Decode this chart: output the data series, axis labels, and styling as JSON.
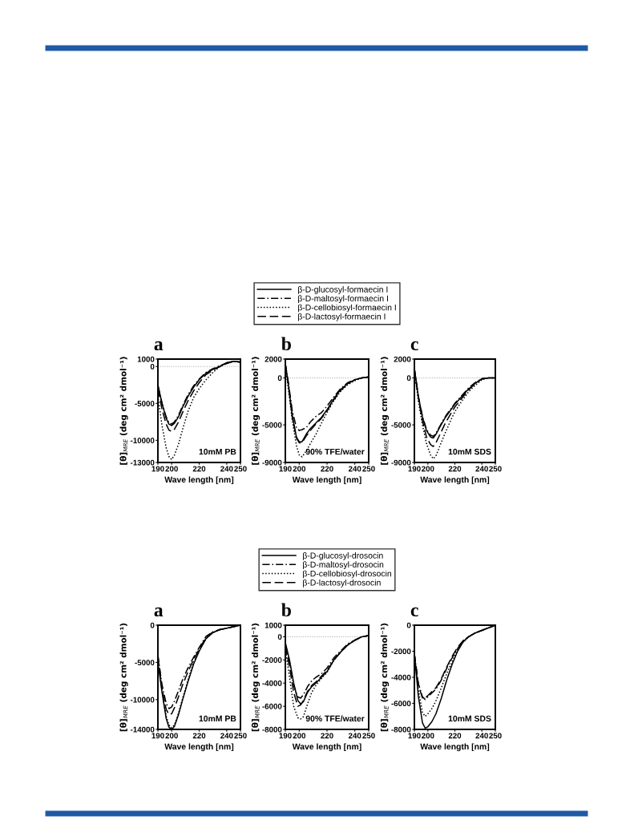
{
  "chart_data": [
    {
      "type": "line",
      "title": "a",
      "xlabel": "Wave length [nm]",
      "ylabel": "[θ]$_{MRE}$ (deg cm² dmol⁻¹)",
      "xlim": [
        190,
        250
      ],
      "xticks": [
        190,
        200,
        220,
        240,
        250
      ],
      "ylim": [
        -13000,
        1000
      ],
      "yticks": [
        1000,
        0,
        -5000,
        -10000,
        -13000
      ],
      "legend": "top",
      "grid": false,
      "annotations": [
        "10mM PB"
      ],
      "ref_lines": [
        {
          "axis": "y",
          "value": 0,
          "color": "#aaaaaa",
          "line_style": "dotted"
        }
      ],
      "x": [
        190,
        193,
        196,
        198,
        200,
        202,
        205,
        208,
        212,
        216,
        220,
        225,
        230,
        235,
        240,
        245,
        250
      ],
      "series": [
        {
          "name": "β-D-glucosyl-formaecin I",
          "color": "#000000",
          "line_style": "solid",
          "values": [
            -2500,
            -5000,
            -7000,
            -7800,
            -8000,
            -7700,
            -6800,
            -5500,
            -4000,
            -2800,
            -1800,
            -900,
            -400,
            0,
            500,
            700,
            600
          ]
        },
        {
          "name": "β-D-maltosyl-formaecin I",
          "color": "#000000",
          "line_style": "dashdot",
          "values": [
            -2600,
            -5000,
            -6800,
            -7600,
            -7800,
            -7500,
            -6600,
            -5300,
            -3800,
            -2600,
            -1700,
            -800,
            -300,
            100,
            500,
            700,
            600
          ]
        },
        {
          "name": "β-D-cellobiosyl-formaecin I",
          "color": "#000000",
          "line_style": "dotted",
          "values": [
            -4000,
            -8000,
            -11000,
            -12200,
            -12600,
            -12000,
            -10500,
            -8500,
            -6000,
            -4200,
            -3000,
            -1800,
            -800,
            0,
            400,
            700,
            600
          ]
        },
        {
          "name": "β-D-lactosyl-formaecin I",
          "color": "#000000",
          "line_style": "dashed",
          "values": [
            -3000,
            -5800,
            -7800,
            -8600,
            -8800,
            -8500,
            -7500,
            -6200,
            -4600,
            -3300,
            -2200,
            -1100,
            -500,
            0,
            400,
            700,
            600
          ]
        }
      ]
    },
    {
      "type": "line",
      "title": "b",
      "xlabel": "Wave length [nm]",
      "ylabel": "[θ]$_{MRE}$ (deg cm² dmol⁻¹)",
      "xlim": [
        190,
        250
      ],
      "xticks": [
        190,
        200,
        220,
        240,
        250
      ],
      "ylim": [
        -9000,
        2000
      ],
      "yticks": [
        2000,
        0,
        -5000,
        -9000
      ],
      "grid": false,
      "annotations": [
        "90% TFE/water"
      ],
      "ref_lines": [
        {
          "axis": "y",
          "value": 0,
          "color": "#aaaaaa",
          "line_style": "dotted"
        }
      ],
      "x": [
        190,
        192,
        195,
        198,
        200,
        202,
        205,
        208,
        212,
        216,
        220,
        225,
        230,
        235,
        240,
        245,
        250
      ],
      "series": [
        {
          "color": "#000000",
          "line_style": "solid",
          "values": [
            1500,
            -500,
            -4000,
            -6300,
            -6800,
            -6800,
            -6000,
            -5400,
            -4800,
            -4200,
            -3400,
            -2200,
            -1200,
            -600,
            -200,
            0,
            100
          ]
        },
        {
          "color": "#000000",
          "line_style": "dashdot",
          "values": [
            1500,
            -300,
            -3500,
            -5300,
            -5600,
            -5500,
            -5300,
            -4700,
            -4100,
            -3700,
            -3000,
            -2000,
            -1100,
            -500,
            -200,
            0,
            100
          ]
        },
        {
          "color": "#000000",
          "line_style": "dotted",
          "values": [
            1200,
            -1000,
            -4500,
            -7200,
            -8200,
            -8400,
            -7800,
            -7000,
            -6000,
            -4800,
            -3700,
            -2400,
            -1400,
            -700,
            -300,
            0,
            100
          ]
        },
        {
          "color": "#000000",
          "line_style": "dashed",
          "values": [
            1500,
            -500,
            -4200,
            -6400,
            -6900,
            -6900,
            -6200,
            -5600,
            -4900,
            -4300,
            -3500,
            -2300,
            -1300,
            -600,
            -200,
            0,
            100
          ]
        }
      ]
    },
    {
      "type": "line",
      "title": "c",
      "xlabel": "Wave length [nm]",
      "ylabel": "[θ]$_{MRE}$ (deg cm² dmol⁻¹)",
      "xlim": [
        190,
        250
      ],
      "xticks": [
        190,
        200,
        220,
        240,
        250
      ],
      "ylim": [
        -9000,
        2000
      ],
      "yticks": [
        2000,
        0,
        -5000,
        -9000
      ],
      "grid": false,
      "annotations": [
        "10mM SDS"
      ],
      "ref_lines": [
        {
          "axis": "y",
          "value": 0,
          "color": "#aaaaaa",
          "line_style": "dotted"
        }
      ],
      "x": [
        190,
        193,
        196,
        199,
        202,
        204,
        206,
        209,
        213,
        217,
        220,
        225,
        230,
        235,
        240,
        245,
        250
      ],
      "series": [
        {
          "color": "#000000",
          "line_style": "solid",
          "values": [
            1000,
            -2000,
            -4200,
            -5600,
            -6300,
            -6400,
            -6000,
            -5200,
            -4200,
            -3400,
            -2800,
            -2000,
            -1200,
            -600,
            -100,
            0,
            0
          ]
        },
        {
          "color": "#000000",
          "line_style": "dashdot",
          "values": [
            1000,
            -2000,
            -4100,
            -5500,
            -6100,
            -6200,
            -5900,
            -5100,
            -4100,
            -3300,
            -2700,
            -1900,
            -1100,
            -500,
            -100,
            0,
            0
          ]
        },
        {
          "color": "#000000",
          "line_style": "dotted",
          "values": [
            800,
            -2500,
            -5000,
            -7000,
            -8200,
            -8600,
            -8300,
            -7200,
            -5800,
            -4500,
            -3600,
            -2500,
            -1500,
            -800,
            -200,
            0,
            0
          ]
        },
        {
          "color": "#000000",
          "line_style": "dashed",
          "values": [
            900,
            -2200,
            -4600,
            -6300,
            -7100,
            -7300,
            -6900,
            -6000,
            -4800,
            -3800,
            -3100,
            -2200,
            -1300,
            -600,
            -100,
            0,
            0
          ]
        }
      ]
    },
    {
      "type": "line",
      "title": "a",
      "xlabel": "Wave length [nm]",
      "ylabel": "[θ]$_{MRE}$ (deg cm² dmol⁻¹)",
      "xlim": [
        190,
        250
      ],
      "xticks": [
        190,
        200,
        220,
        240,
        250
      ],
      "ylim": [
        -14000,
        0
      ],
      "yticks": [
        0,
        -5000,
        -10000,
        -14000
      ],
      "legend": "top",
      "grid": false,
      "annotations": [
        "10mM PB"
      ],
      "x": [
        190,
        193,
        196,
        198,
        200,
        202,
        205,
        208,
        212,
        216,
        220,
        225,
        230,
        235,
        240,
        245,
        250
      ],
      "series": [
        {
          "name": "β-D-glucosyl-drosocin",
          "color": "#000000",
          "line_style": "solid",
          "values": [
            -5000,
            -9000,
            -12500,
            -13700,
            -14000,
            -13600,
            -12000,
            -10000,
            -7500,
            -5200,
            -3500,
            -1800,
            -1000,
            -600,
            -400,
            -200,
            0
          ]
        },
        {
          "name": "β-D-maltosyl-drosocin",
          "color": "#000000",
          "line_style": "dashdot",
          "values": [
            -4000,
            -8000,
            -10500,
            -11200,
            -11000,
            -10200,
            -8800,
            -7300,
            -5700,
            -4300,
            -3000,
            -1500,
            -900,
            -600,
            -400,
            -200,
            0
          ]
        },
        {
          "name": "β-D-cellobiosyl-drosocin",
          "color": "#000000",
          "line_style": "dotted",
          "values": [
            -4500,
            -8800,
            -12200,
            -13400,
            -13800,
            -13400,
            -11800,
            -9800,
            -7300,
            -5000,
            -3400,
            -1800,
            -1000,
            -600,
            -400,
            -200,
            0
          ]
        },
        {
          "name": "β-D-lactosyl-drosocin",
          "color": "#000000",
          "line_style": "dashed",
          "values": [
            -4200,
            -8500,
            -11300,
            -12000,
            -11900,
            -11100,
            -9600,
            -8000,
            -6200,
            -4600,
            -3200,
            -1600,
            -900,
            -600,
            -400,
            -200,
            0
          ]
        }
      ]
    },
    {
      "type": "line",
      "title": "b",
      "xlabel": "Wave length [nm]",
      "ylabel": "[θ]$_{MRE}$ (deg cm² dmol⁻¹)",
      "xlim": [
        190,
        250
      ],
      "xticks": [
        190,
        200,
        220,
        240,
        250
      ],
      "ylim": [
        -8000,
        1000
      ],
      "yticks": [
        1000,
        0,
        -2000,
        -4000,
        -6000,
        -8000
      ],
      "grid": false,
      "annotations": [
        "90% TFE/water"
      ],
      "ref_lines": [
        {
          "axis": "y",
          "value": 0,
          "color": "#aaaaaa",
          "line_style": "dotted"
        }
      ],
      "x": [
        190,
        193,
        196,
        199,
        201,
        203,
        206,
        209,
        212,
        216,
        220,
        225,
        230,
        235,
        240,
        245,
        250
      ],
      "series": [
        {
          "color": "#000000",
          "line_style": "solid",
          "values": [
            -500,
            -2000,
            -4000,
            -5500,
            -5800,
            -5600,
            -4800,
            -4300,
            -4000,
            -3500,
            -3000,
            -2000,
            -1300,
            -700,
            -300,
            0,
            100
          ]
        },
        {
          "color": "#000000",
          "line_style": "dashdot",
          "values": [
            -600,
            -2200,
            -4200,
            -5200,
            -5300,
            -5000,
            -4300,
            -3800,
            -3500,
            -3200,
            -2700,
            -1800,
            -1200,
            -600,
            -300,
            0,
            100
          ]
        },
        {
          "color": "#000000",
          "line_style": "dotted",
          "values": [
            -1000,
            -3500,
            -6000,
            -7000,
            -7100,
            -6900,
            -5800,
            -4800,
            -4200,
            -3600,
            -3100,
            -2000,
            -1300,
            -700,
            -300,
            0,
            100
          ]
        },
        {
          "color": "#000000",
          "line_style": "dashed",
          "values": [
            -800,
            -2600,
            -4800,
            -6000,
            -5900,
            -5500,
            -4700,
            -4200,
            -3900,
            -3400,
            -2900,
            -2000,
            -1300,
            -700,
            -300,
            0,
            100
          ]
        }
      ]
    },
    {
      "type": "line",
      "title": "c",
      "xlabel": "Wave length [nm]",
      "ylabel": "[θ]$_{MRE}$ (deg cm² dmol⁻¹)",
      "xlim": [
        190,
        250
      ],
      "xticks": [
        190,
        200,
        220,
        240,
        250
      ],
      "ylim": [
        -8000,
        0
      ],
      "yticks": [
        0,
        -2000,
        -4000,
        -6000,
        -8000
      ],
      "grid": false,
      "annotations": [
        "10mM SDS"
      ],
      "x": [
        190,
        193,
        196,
        198,
        200,
        203,
        206,
        210,
        214,
        218,
        222,
        226,
        230,
        235,
        240,
        245,
        250
      ],
      "series": [
        {
          "color": "#000000",
          "line_style": "solid",
          "values": [
            -2200,
            -5500,
            -7500,
            -7900,
            -7800,
            -7400,
            -6800,
            -5600,
            -4200,
            -3000,
            -2000,
            -1300,
            -900,
            -600,
            -400,
            -200,
            0
          ]
        },
        {
          "color": "#000000",
          "line_style": "dashdot",
          "values": [
            -2200,
            -4500,
            -5500,
            -5700,
            -5500,
            -5200,
            -4900,
            -4200,
            -3300,
            -2500,
            -1800,
            -1200,
            -900,
            -600,
            -400,
            -200,
            0
          ]
        },
        {
          "color": "#000000",
          "line_style": "dotted",
          "values": [
            -2200,
            -5000,
            -6700,
            -7000,
            -6800,
            -6400,
            -5800,
            -4800,
            -3700,
            -2800,
            -1900,
            -1300,
            -900,
            -600,
            -400,
            -200,
            0
          ]
        },
        {
          "color": "#000000",
          "line_style": "dashed",
          "values": [
            -2200,
            -4600,
            -5600,
            -5600,
            -5400,
            -5100,
            -4800,
            -4100,
            -3200,
            -2400,
            -1700,
            -1200,
            -900,
            -600,
            -400,
            -200,
            0
          ]
        }
      ]
    }
  ]
}
